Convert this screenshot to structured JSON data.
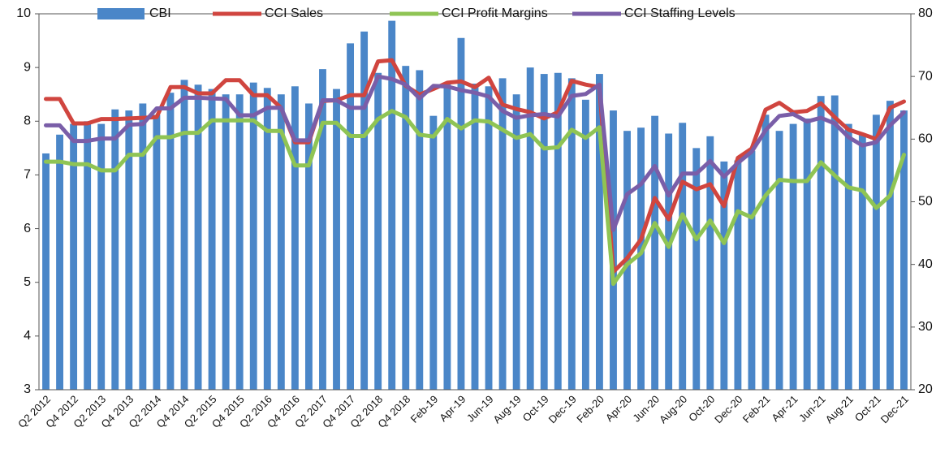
{
  "chart_data": {
    "type": "bar-line",
    "categories": [
      "Q2 2012",
      null,
      "Q4 2012",
      null,
      "Q2 2013",
      null,
      "Q4 2013",
      null,
      "Q2 2014",
      null,
      "Q4 2014",
      null,
      "Q2 2015",
      null,
      "Q4 2015",
      null,
      "Q2 2016",
      null,
      "Q4 2016",
      null,
      "Q2 2017",
      null,
      "Q4 2017",
      null,
      "Q2 2018",
      null,
      "Q4 2018",
      null,
      "Feb-19",
      null,
      "Apr-19",
      null,
      "Jun-19",
      null,
      "Aug-19",
      null,
      "Oct-19",
      null,
      "Dec-19",
      null,
      "Feb-20",
      null,
      "Apr-20",
      null,
      "Jun-20",
      null,
      "Aug-20",
      null,
      "Oct-20",
      null,
      "Dec-20",
      null,
      "Feb-21",
      null,
      "Apr-21",
      null,
      "Jun-21",
      null,
      "Aug-21",
      null,
      "Oct-21",
      null,
      "Dec-21"
    ],
    "series": [
      {
        "name": "CBI",
        "color": "#4a86c8",
        "kind": "bar",
        "axis": "y",
        "values": [
          7.4,
          7.75,
          7.95,
          8.0,
          7.95,
          8.22,
          8.2,
          8.33,
          8.12,
          8.53,
          8.77,
          8.68,
          8.6,
          8.5,
          8.5,
          8.72,
          8.62,
          8.5,
          8.65,
          8.33,
          8.97,
          8.6,
          9.45,
          9.67,
          8.9,
          9.87,
          9.03,
          8.95,
          8.1,
          8.7,
          9.55,
          8.7,
          8.65,
          8.8,
          8.5,
          9.0,
          8.88,
          8.9,
          8.8,
          8.4,
          8.88,
          8.2,
          7.82,
          7.88,
          8.1,
          7.77,
          7.97,
          7.5,
          7.72,
          7.25,
          7.27,
          7.45,
          8.12,
          7.82,
          7.95,
          8.05,
          8.47,
          8.48,
          7.95,
          7.75,
          8.12,
          8.38,
          8.2
        ]
      },
      {
        "name": "CCI Sales",
        "color": "#d0453f",
        "kind": "line",
        "axis": "y2",
        "values": [
          66.4,
          66.4,
          62.5,
          62.5,
          63.2,
          63.2,
          63.3,
          63.4,
          63.5,
          68.3,
          68.3,
          67.3,
          67.3,
          69.4,
          69.4,
          67,
          67,
          65,
          59.5,
          59.5,
          66.1,
          66.2,
          67,
          67,
          72.4,
          72.6,
          68.5,
          67.1,
          68,
          69,
          69.2,
          68.3,
          69.8,
          65.5,
          64.8,
          64.3,
          63.3,
          64.3,
          69.3,
          68.7,
          68.3,
          38.8,
          41,
          44,
          50.6,
          47.2,
          53.2,
          52,
          52.8,
          49.3,
          57,
          58.5,
          64.7,
          65.8,
          64.3,
          64.5,
          65.7,
          63.5,
          61.5,
          60.8,
          60,
          65,
          66
        ]
      },
      {
        "name": "CCI Profit Margins",
        "color": "#8fc454",
        "kind": "line",
        "axis": "y2",
        "values": [
          56.4,
          56.4,
          56,
          56,
          55,
          55,
          57.5,
          57.5,
          60.3,
          60.3,
          61,
          61,
          63,
          63,
          63,
          63,
          61.3,
          61.3,
          55.8,
          55.8,
          62.6,
          62.6,
          60.5,
          60.5,
          63.2,
          64.5,
          63.5,
          60.7,
          60.4,
          63.2,
          61.7,
          63,
          62.8,
          61.5,
          60.2,
          60.8,
          58.5,
          58.7,
          61.5,
          60.2,
          61.9,
          36.9,
          40,
          41.8,
          46.6,
          42.8,
          48,
          44,
          47,
          43.4,
          48.5,
          47.5,
          51,
          53.5,
          53.3,
          53.3,
          56.3,
          54.2,
          52.3,
          51.8,
          49,
          51,
          57.5
        ]
      },
      {
        "name": "CCI Staffing Levels",
        "color": "#7a5ea8",
        "kind": "line",
        "axis": "y2",
        "values": [
          62.2,
          62.2,
          59.7,
          59.7,
          60.1,
          60.1,
          62.3,
          62.4,
          64.9,
          64.9,
          66.6,
          66.6,
          66.5,
          66.4,
          63.8,
          63.8,
          65,
          65,
          59.8,
          59.8,
          66.2,
          66.2,
          65,
          65,
          70,
          69.6,
          68.7,
          66.5,
          68.5,
          68.4,
          67.8,
          67.4,
          66.8,
          64.5,
          63.4,
          63.8,
          64,
          63.6,
          66.9,
          67.2,
          68.7,
          45.5,
          51.2,
          52.8,
          55.7,
          51,
          54.5,
          54.5,
          56.5,
          54,
          56.2,
          58,
          61.4,
          63.7,
          64,
          62.8,
          63.4,
          62.5,
          60.3,
          59,
          59.5,
          62.2,
          64.3
        ]
      }
    ],
    "ylim": [
      3,
      10
    ],
    "yticks": [
      3,
      4,
      5,
      6,
      7,
      8,
      9,
      10
    ],
    "y2lim": [
      20,
      80
    ],
    "y2ticks": [
      20,
      30,
      40,
      50,
      60,
      70,
      80
    ],
    "legend": "top",
    "grid": false
  }
}
